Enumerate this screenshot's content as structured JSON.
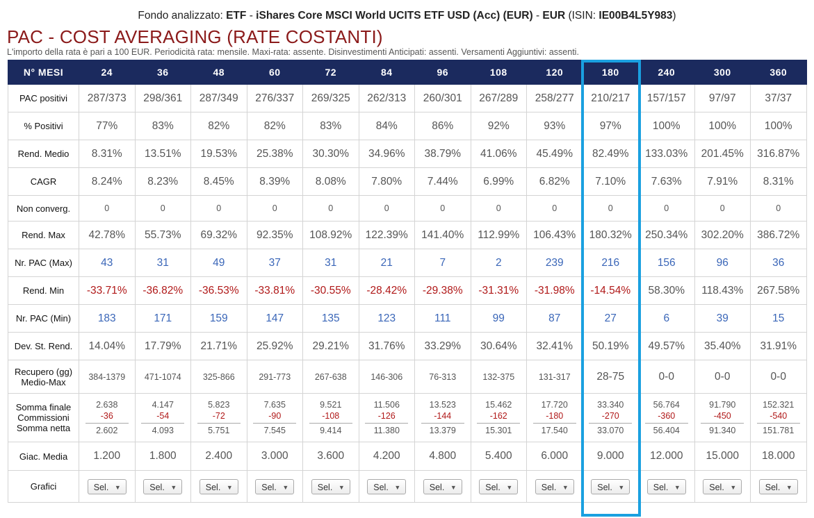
{
  "header": {
    "prefix": "Fondo analizzato:",
    "fund_type": "ETF",
    "dash1": "-",
    "fund_name": "iShares Core MSCI World UCITS ETF USD (Acc) (EUR)",
    "dash2": "-",
    "currency": "EUR",
    "isin_label": "(ISIN:",
    "isin": "IE00B4L5Y983",
    "isin_close": ")"
  },
  "title": "PAC - COST AVERAGING (RATE COSTANTI)",
  "subtitle": "L'importo della rata è pari a 100 EUR. Periodicità rata: mensile. Maxi-rata: assente. Disinvestimenti Anticipati: assenti. Versamenti Aggiuntivi: assenti.",
  "table": {
    "corner": "N° MESI",
    "months": [
      "24",
      "36",
      "48",
      "60",
      "72",
      "84",
      "96",
      "108",
      "120",
      "180",
      "240",
      "300",
      "360"
    ],
    "highlighted_month": "180",
    "highlight_color": "#1aa0e0",
    "header_bg": "#1b2a5e",
    "rows": {
      "pac_positivi": {
        "label": "PAC positivi",
        "values": [
          "287/373",
          "298/361",
          "287/349",
          "276/337",
          "269/325",
          "262/313",
          "260/301",
          "267/289",
          "258/277",
          "210/217",
          "157/157",
          "97/97",
          "37/37"
        ]
      },
      "pct_positivi": {
        "label": "% Positivi",
        "values": [
          "77%",
          "83%",
          "82%",
          "82%",
          "83%",
          "84%",
          "86%",
          "92%",
          "93%",
          "97%",
          "100%",
          "100%",
          "100%"
        ]
      },
      "rend_medio": {
        "label": "Rend. Medio",
        "values": [
          "8.31%",
          "13.51%",
          "19.53%",
          "25.38%",
          "30.30%",
          "34.96%",
          "38.79%",
          "41.06%",
          "45.49%",
          "82.49%",
          "133.03%",
          "201.45%",
          "316.87%"
        ]
      },
      "cagr": {
        "label": "CAGR",
        "values": [
          "8.24%",
          "8.23%",
          "8.45%",
          "8.39%",
          "8.08%",
          "7.80%",
          "7.44%",
          "6.99%",
          "6.82%",
          "7.10%",
          "7.63%",
          "7.91%",
          "8.31%"
        ]
      },
      "non_converg": {
        "label": "Non converg.",
        "values": [
          "0",
          "0",
          "0",
          "0",
          "0",
          "0",
          "0",
          "0",
          "0",
          "0",
          "0",
          "0",
          "0"
        ]
      },
      "rend_max": {
        "label": "Rend. Max",
        "values": [
          "42.78%",
          "55.73%",
          "69.32%",
          "92.35%",
          "108.92%",
          "122.39%",
          "141.40%",
          "112.99%",
          "106.43%",
          "180.32%",
          "250.34%",
          "302.20%",
          "386.72%"
        ]
      },
      "nr_pac_max": {
        "label": "Nr. PAC (Max)",
        "values": [
          "43",
          "31",
          "49",
          "37",
          "31",
          "21",
          "7",
          "2",
          "239",
          "216",
          "156",
          "96",
          "36"
        ]
      },
      "rend_min": {
        "label": "Rend. Min",
        "values": [
          "-33.71%",
          "-36.82%",
          "-36.53%",
          "-33.81%",
          "-30.55%",
          "-28.42%",
          "-29.38%",
          "-31.31%",
          "-31.98%",
          "-14.54%",
          "58.30%",
          "118.43%",
          "267.58%"
        ],
        "negative": [
          true,
          true,
          true,
          true,
          true,
          true,
          true,
          true,
          true,
          true,
          false,
          false,
          false
        ]
      },
      "nr_pac_min": {
        "label": "Nr. PAC (Min)",
        "values": [
          "183",
          "171",
          "159",
          "147",
          "135",
          "123",
          "111",
          "99",
          "87",
          "27",
          "6",
          "39",
          "15"
        ]
      },
      "dev_st": {
        "label": "Dev. St. Rend.",
        "values": [
          "14.04%",
          "17.79%",
          "21.71%",
          "25.92%",
          "29.21%",
          "31.76%",
          "33.29%",
          "30.64%",
          "32.41%",
          "50.19%",
          "49.57%",
          "35.40%",
          "31.91%"
        ]
      },
      "recupero": {
        "label_line1": "Recupero (gg)",
        "label_line2": "Medio-Max",
        "values": [
          "384-1379",
          "471-1074",
          "325-866",
          "291-773",
          "267-638",
          "146-306",
          "76-313",
          "132-375",
          "131-317",
          "28-75",
          "0-0",
          "0-0",
          "0-0"
        ]
      },
      "somme": {
        "label_line1": "Somma finale",
        "label_line2": "Commissioni",
        "label_line3": "Somma netta",
        "finale": [
          "2.638",
          "4.147",
          "5.823",
          "7.635",
          "9.521",
          "11.506",
          "13.523",
          "15.462",
          "17.720",
          "33.340",
          "56.764",
          "91.790",
          "152.321"
        ],
        "commissioni": [
          "-36",
          "-54",
          "-72",
          "-90",
          "-108",
          "-126",
          "-144",
          "-162",
          "-180",
          "-270",
          "-360",
          "-450",
          "-540"
        ],
        "netta": [
          "2.602",
          "4.093",
          "5.751",
          "7.545",
          "9.414",
          "11.380",
          "13.379",
          "15.301",
          "17.540",
          "33.070",
          "56.404",
          "91.340",
          "151.781"
        ]
      },
      "giac_media": {
        "label": "Giac. Media",
        "values": [
          "1.200",
          "1.800",
          "2.400",
          "3.000",
          "3.600",
          "4.200",
          "4.800",
          "5.400",
          "6.000",
          "9.000",
          "12.000",
          "15.000",
          "18.000"
        ]
      },
      "grafici": {
        "label": "Grafici",
        "select_value": "Sel.",
        "arrow_icon": "▼"
      }
    }
  }
}
